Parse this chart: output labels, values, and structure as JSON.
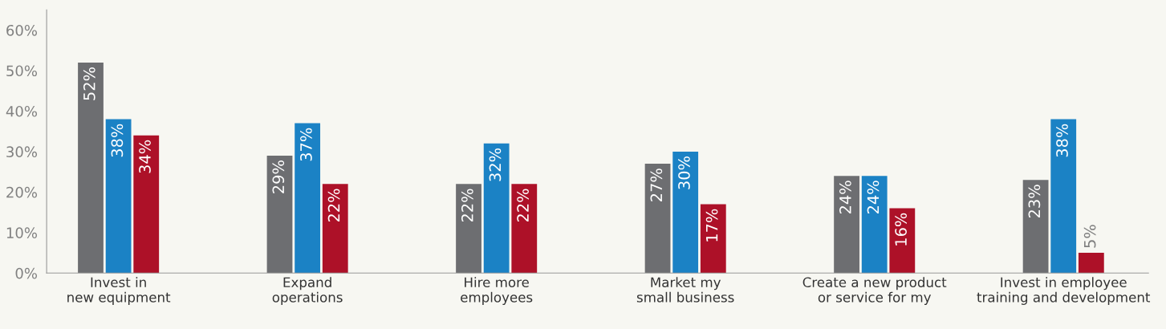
{
  "chart_data": {
    "type": "bar",
    "categories": [
      "Invest in\nnew equipment",
      "Expand\noperations",
      "Hire more\nemployees",
      "Market my\nsmall business",
      "Create a new product\nor service for my",
      "Invest in employee\ntraining and development"
    ],
    "series": [
      {
        "color": "#6d6e71",
        "values": [
          52,
          29,
          22,
          27,
          24,
          23
        ],
        "value_labels": [
          "52%",
          "29%",
          "22%",
          "27%",
          "24%",
          "23%"
        ]
      },
      {
        "color": "#1b82c5",
        "values": [
          38,
          37,
          32,
          30,
          24,
          38
        ],
        "value_labels": [
          "38%",
          "37%",
          "32%",
          "30%",
          "24%",
          "38%"
        ]
      },
      {
        "color": "#ad1128",
        "values": [
          34,
          22,
          22,
          17,
          16,
          5
        ],
        "value_labels": [
          "34%",
          "22%",
          "22%",
          "17%",
          "16%",
          "5%"
        ]
      }
    ],
    "ylim": [
      0,
      65
    ],
    "yticks": [
      {
        "value": 0,
        "label": "0%"
      },
      {
        "value": 10,
        "label": "10%"
      },
      {
        "value": 20,
        "label": "20%"
      },
      {
        "value": 30,
        "label": "30%"
      },
      {
        "value": 40,
        "label": "40%"
      },
      {
        "value": 50,
        "label": "50%"
      },
      {
        "value": 60,
        "label": "60%"
      }
    ],
    "grid": false,
    "legend": false
  }
}
